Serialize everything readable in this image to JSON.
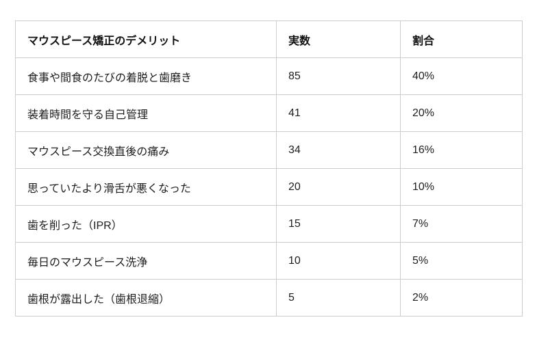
{
  "chart_data": {
    "type": "table",
    "title": "マウスピース矯正のデメリット",
    "columns": [
      "マウスピース矯正のデメリット",
      "実数",
      "割合"
    ],
    "rows": [
      [
        "食事や間食のたびの着脱と歯磨き",
        "85",
        "40%"
      ],
      [
        "装着時間を守る自己管理",
        "41",
        "20%"
      ],
      [
        "マウスピース交換直後の痛み",
        "34",
        "16%"
      ],
      [
        "思っていたより滑舌が悪くなった",
        "20",
        "10%"
      ],
      [
        "歯を削った（IPR）",
        "15",
        "7%"
      ],
      [
        "毎日のマウスピース洗浄",
        "10",
        "5%"
      ],
      [
        "歯根が露出した（歯根退縮）",
        "5",
        "2%"
      ]
    ],
    "counts": [
      85,
      41,
      34,
      20,
      15,
      10,
      5
    ],
    "percentages": [
      "40%",
      "20%",
      "16%",
      "10%",
      "7%",
      "5%",
      "2%"
    ],
    "layout": {
      "grid": "on",
      "border_color": "#cccccc",
      "text_color": "#1c1c1c",
      "header_bold": true
    }
  }
}
